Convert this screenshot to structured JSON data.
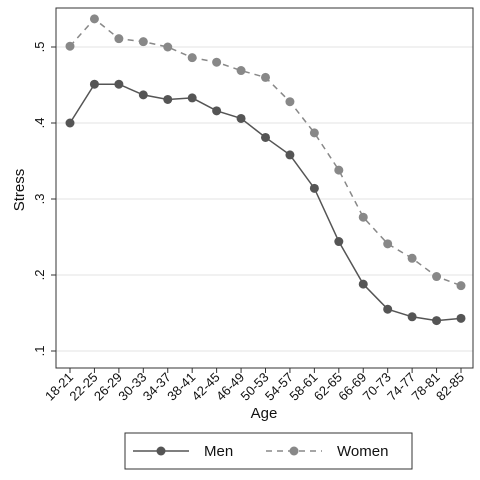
{
  "chart_data": {
    "type": "line",
    "xlabel": "Age",
    "ylabel": "Stress",
    "ylim": [
      0.1,
      0.55
    ],
    "yticks": [
      0.1,
      0.2,
      0.3,
      0.4,
      0.5
    ],
    "ytick_labels": [
      ".1",
      ".2",
      ".3",
      ".4",
      ".5"
    ],
    "grid": true,
    "legend_position": "bottom",
    "categories": [
      "18-21",
      "22-25",
      "26-29",
      "30-33",
      "34-37",
      "38-41",
      "42-45",
      "46-49",
      "50-53",
      "54-57",
      "58-61",
      "62-65",
      "66-69",
      "70-73",
      "74-77",
      "78-81",
      "82-85"
    ],
    "series": [
      {
        "name": "Men",
        "style": "solid",
        "color": "#555555",
        "values": [
          0.4,
          0.451,
          0.451,
          0.437,
          0.431,
          0.433,
          0.416,
          0.406,
          0.381,
          0.358,
          0.314,
          0.244,
          0.188,
          0.155,
          0.145,
          0.14,
          0.143
        ]
      },
      {
        "name": "Women",
        "style": "dashed",
        "color": "#888888",
        "values": [
          0.501,
          0.537,
          0.511,
          0.507,
          0.5,
          0.486,
          0.48,
          0.469,
          0.46,
          0.428,
          0.387,
          0.338,
          0.276,
          0.241,
          0.222,
          0.198,
          0.186
        ]
      }
    ]
  }
}
